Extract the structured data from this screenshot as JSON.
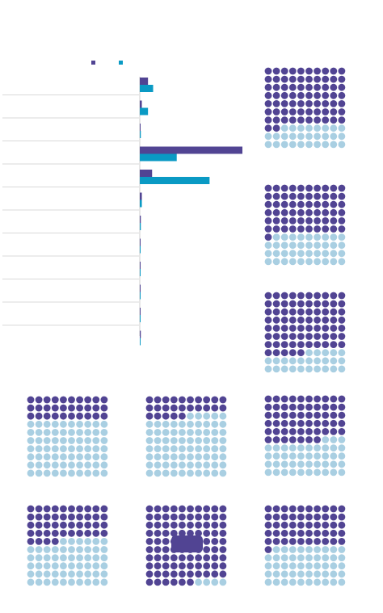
{
  "colors": {
    "series_dark": "#514493",
    "series_light": "#0a9ac4",
    "waffle_filled": "#514493",
    "waffle_empty": "#a9cfe2",
    "divider": "#d9d9d9",
    "axis": "#cccccc"
  },
  "chart_data": [
    {
      "type": "bar",
      "orientation": "horizontal",
      "legend": {
        "placement": "top",
        "entries": [
          {
            "color": "#514493"
          },
          {
            "color": "#0a9ac4"
          }
        ]
      },
      "title": "",
      "xlabel": "",
      "ylabel": "",
      "xlim": [
        0,
        100
      ],
      "categories": [
        "",
        "",
        "",
        "",
        "",
        "",
        "",
        "",
        "",
        "",
        "",
        ""
      ],
      "series": [
        {
          "color": "#514493",
          "values": [
            8,
            2,
            0,
            100,
            12,
            2,
            1,
            0.5,
            0.5,
            0.5,
            0.5,
            1
          ]
        },
        {
          "color": "#0a9ac4",
          "values": [
            13,
            8,
            1,
            36,
            68,
            2,
            1,
            0.5,
            0.5,
            0.5,
            0.5,
            0.5
          ]
        }
      ],
      "grid": false
    },
    {
      "type": "waffle",
      "grid_shape": [
        10,
        10
      ],
      "panels": [
        {
          "filled": 72
        },
        {
          "filled": 61
        },
        {
          "filled": 75
        },
        {
          "filled": 30
        },
        {
          "filled": 25
        },
        {
          "filled": 57
        },
        {
          "filled": 44
        },
        {
          "filled": 96,
          "has_badge": true
        },
        {
          "filled": 51
        }
      ]
    }
  ]
}
